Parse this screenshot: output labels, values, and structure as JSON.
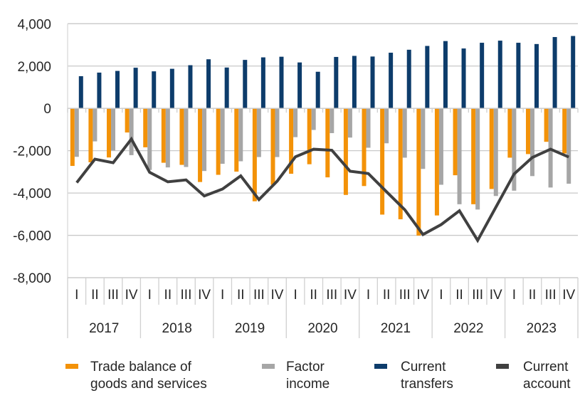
{
  "chart_data": {
    "type": "bar",
    "title": "",
    "xlabel": "",
    "ylabel": "",
    "ylim": [
      -8000,
      4000
    ],
    "yticks": [
      4000,
      2000,
      0,
      -2000,
      -4000,
      -6000,
      -8000
    ],
    "ytick_labels": [
      "4,000",
      "2,000",
      "0",
      "-2,000",
      "-4,000",
      "-6,000",
      "-8,000"
    ],
    "grid": true,
    "legend_position": "bottom",
    "years": [
      "2017",
      "2018",
      "2019",
      "2020",
      "2021",
      "2022",
      "2023"
    ],
    "quarters": [
      "I",
      "II",
      "III",
      "IV"
    ],
    "series": [
      {
        "name": "Trade balance of goods and services",
        "kind": "bar",
        "color": "#F39208",
        "values": [
          -2720,
          -2550,
          -2320,
          -1140,
          -1840,
          -2570,
          -2670,
          -3480,
          -3140,
          -2990,
          -4390,
          -3610,
          -3090,
          -2640,
          -3260,
          -4090,
          -3670,
          -5020,
          -5240,
          -6010,
          -5060,
          -3160,
          -4530,
          -3810,
          -2330,
          -2160,
          -1580,
          -2130
        ]
      },
      {
        "name": "Factor income",
        "kind": "bar",
        "color": "#A6A6A6",
        "values": [
          -2290,
          -1560,
          -1990,
          -2210,
          -2910,
          -2790,
          -2770,
          -2960,
          -2620,
          -2500,
          -2300,
          -2300,
          -1360,
          -1020,
          -1170,
          -1380,
          -1860,
          -1650,
          -2330,
          -2860,
          -3610,
          -4530,
          -4780,
          -4140,
          -3890,
          -3200,
          -3740,
          -3560
        ]
      },
      {
        "name": "Current transfers",
        "kind": "bar",
        "color": "#0D3C6B",
        "values": [
          1520,
          1690,
          1770,
          1920,
          1750,
          1870,
          2040,
          2320,
          1930,
          2290,
          2410,
          2440,
          2170,
          1730,
          2430,
          2480,
          2450,
          2630,
          2770,
          2950,
          3180,
          2830,
          3100,
          3200,
          3100,
          3040,
          3370,
          3420
        ]
      },
      {
        "name": "Current account",
        "kind": "line",
        "color": "#404040",
        "values": [
          -3510,
          -2400,
          -2570,
          -1450,
          -3020,
          -3470,
          -3380,
          -4140,
          -3810,
          -3190,
          -4310,
          -3440,
          -2290,
          -1930,
          -1980,
          -2970,
          -3080,
          -3940,
          -4790,
          -5960,
          -5490,
          -4840,
          -6240,
          -4670,
          -3100,
          -2320,
          -1930,
          -2300
        ]
      }
    ]
  },
  "legend": [
    {
      "line1": "Trade balance of",
      "line2": "goods and services"
    },
    {
      "line1": "Factor",
      "line2": "income"
    },
    {
      "line1": "Current",
      "line2": "transfers"
    },
    {
      "line1": "Current",
      "line2": "account"
    }
  ]
}
